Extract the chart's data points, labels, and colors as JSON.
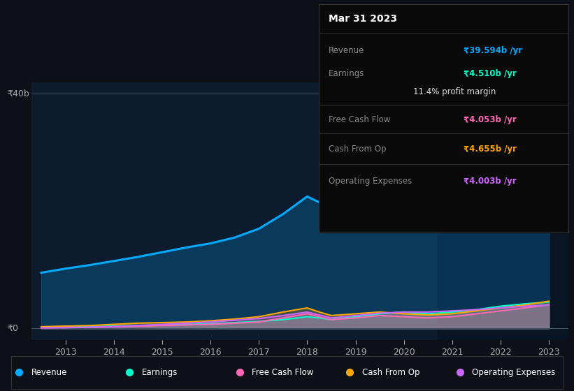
{
  "background_color": "#0d1117",
  "chart_bg_color": "#0d1b2e",
  "years": [
    2012.5,
    2013,
    2013.5,
    2014,
    2014.5,
    2015,
    2015.5,
    2016,
    2016.5,
    2017,
    2017.5,
    2018,
    2018.25,
    2018.5,
    2019,
    2019.5,
    2020,
    2020.5,
    2021,
    2021.5,
    2022,
    2022.5,
    2023
  ],
  "revenue": [
    9.5,
    10.2,
    10.8,
    11.5,
    12.2,
    13.0,
    13.8,
    14.5,
    15.5,
    17.0,
    19.5,
    22.5,
    21.5,
    20.5,
    22.0,
    23.5,
    22.5,
    21.0,
    22.0,
    26.0,
    31.0,
    36.0,
    39.594
  ],
  "earnings": [
    0.2,
    0.25,
    0.3,
    0.4,
    0.5,
    0.6,
    0.7,
    0.8,
    1.0,
    1.2,
    1.5,
    2.0,
    1.8,
    1.5,
    2.0,
    2.5,
    2.8,
    2.5,
    2.8,
    3.2,
    3.8,
    4.2,
    4.51
  ],
  "free_cash_flow": [
    0.1,
    0.15,
    0.2,
    0.3,
    0.4,
    0.5,
    0.6,
    0.7,
    0.9,
    1.1,
    1.8,
    2.5,
    2.0,
    1.5,
    1.8,
    2.2,
    2.0,
    1.8,
    2.0,
    2.5,
    3.0,
    3.5,
    4.053
  ],
  "cash_from_op": [
    0.3,
    0.4,
    0.5,
    0.7,
    0.9,
    1.0,
    1.1,
    1.3,
    1.6,
    2.0,
    2.8,
    3.5,
    2.8,
    2.2,
    2.5,
    2.8,
    2.5,
    2.3,
    2.5,
    3.0,
    3.5,
    4.0,
    4.655
  ],
  "op_expenses": [
    0.1,
    0.15,
    0.2,
    0.3,
    0.5,
    0.7,
    0.9,
    1.1,
    1.4,
    1.7,
    2.2,
    2.8,
    2.3,
    1.8,
    2.2,
    2.6,
    2.8,
    2.8,
    3.0,
    3.2,
    3.5,
    3.8,
    4.003
  ],
  "revenue_color": "#00aaff",
  "earnings_color": "#00ffcc",
  "free_cash_flow_color": "#ff69b4",
  "cash_from_op_color": "#ffa500",
  "op_expenses_color": "#cc66ff",
  "x_ticks": [
    2013,
    2014,
    2015,
    2016,
    2017,
    2018,
    2019,
    2020,
    2021,
    2022,
    2023
  ],
  "y_label_40b": "₹40b",
  "y_label_0": "₹0",
  "ylim_max": 42,
  "ylim_min": -2,
  "tooltip_bg": "#0a0a0a",
  "tooltip_border": "#333333",
  "tooltip_title": "Mar 31 2023",
  "tooltip_rows": [
    {
      "label": "Revenue",
      "value": "₹39.594b /yr",
      "color": "#00aaff",
      "indent": false
    },
    {
      "label": "Earnings",
      "value": "₹4.510b /yr",
      "color": "#00ffcc",
      "indent": false
    },
    {
      "label": "",
      "value": "11.4% profit margin",
      "color": "#dddddd",
      "indent": true
    },
    {
      "label": "Free Cash Flow",
      "value": "₹4.053b /yr",
      "color": "#ff69b4",
      "indent": false
    },
    {
      "label": "Cash From Op",
      "value": "₹4.655b /yr",
      "color": "#ffa500",
      "indent": false
    },
    {
      "label": "Operating Expenses",
      "value": "₹4.003b /yr",
      "color": "#cc66ff",
      "indent": false
    }
  ],
  "legend_items": [
    {
      "label": "Revenue",
      "color": "#00aaff"
    },
    {
      "label": "Earnings",
      "color": "#00ffcc"
    },
    {
      "label": "Free Cash Flow",
      "color": "#ff69b4"
    },
    {
      "label": "Cash From Op",
      "color": "#ffa500"
    },
    {
      "label": "Operating Expenses",
      "color": "#cc66ff"
    }
  ]
}
